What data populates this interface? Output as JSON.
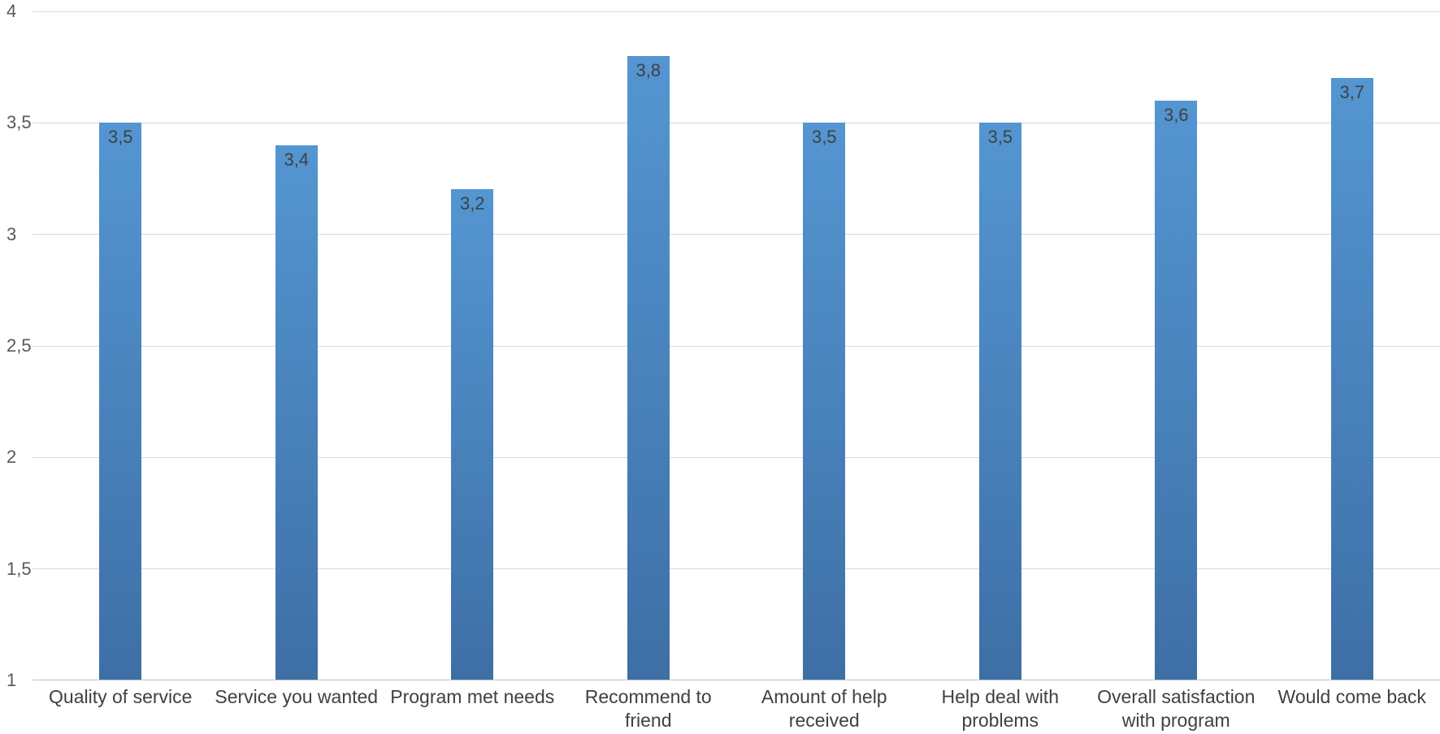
{
  "chart_data": {
    "type": "bar",
    "title": "",
    "xlabel": "",
    "ylabel": "",
    "categories": [
      "Quality of service",
      "Service you wanted",
      "Program met needs",
      "Recommend to\nfriend",
      "Amount of help\nreceived",
      "Help deal with\nproblems",
      "Overall satisfaction\nwith program",
      "Would come back"
    ],
    "values": [
      3.5,
      3.4,
      3.2,
      3.8,
      3.5,
      3.5,
      3.6,
      3.7
    ],
    "value_labels": [
      "3,5",
      "3,4",
      "3,2",
      "3,8",
      "3,5",
      "3,5",
      "3,6",
      "3,7"
    ],
    "ylim": [
      1,
      4
    ],
    "yticks": [
      {
        "value": 4,
        "label": "4"
      },
      {
        "value": 3.5,
        "label": "3,5"
      },
      {
        "value": 3,
        "label": "3"
      },
      {
        "value": 2.5,
        "label": "2,5"
      },
      {
        "value": 2,
        "label": "2"
      },
      {
        "value": 1.5,
        "label": "1,5"
      },
      {
        "value": 1,
        "label": "1"
      }
    ],
    "grid": true,
    "legend": "none",
    "colors": {
      "background": "#ffffff",
      "bar_gradient_top": "#5496d2",
      "bar_gradient_bottom": "#3e6fa6",
      "gridline": "#d9d9d9",
      "axis_line": "#bfbfbf",
      "tick_label": "#595959",
      "category_label": "#404040",
      "value_label": "#404040"
    }
  }
}
